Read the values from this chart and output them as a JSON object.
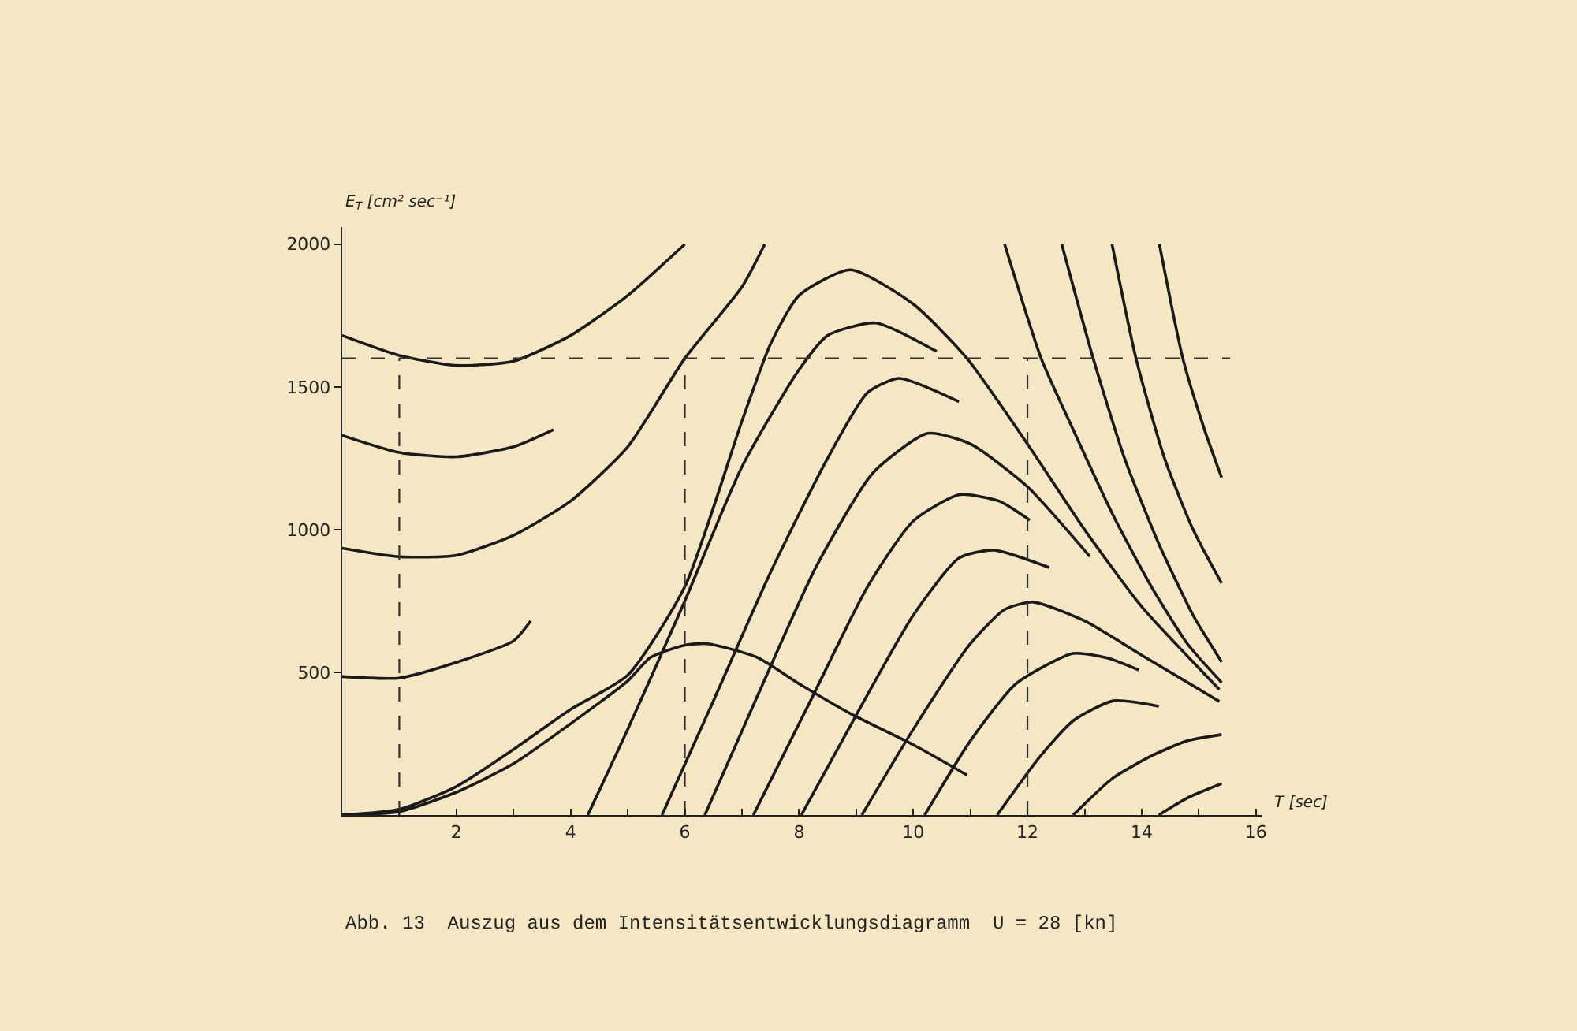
{
  "chart_data": {
    "type": "line",
    "xlabel": "T [sec]",
    "ylabel": "E$_{T}$ [cm² sec⁻¹]",
    "annotations": [
      "Abb. 13  Auszug aus dem Intensitätsentwicklungsdiagramm  U = 28 [kn]"
    ],
    "xlim": [
      0,
      16.1
    ],
    "ylim": [
      0,
      2060
    ],
    "xticks": [
      {
        "value": 1,
        "label": null
      },
      2,
      {
        "value": 3,
        "label": null
      },
      4,
      {
        "value": 5,
        "label": null
      },
      6,
      {
        "value": 7,
        "label": null
      },
      8,
      {
        "value": 9,
        "label": null
      },
      10,
      {
        "value": 11,
        "label": null
      },
      12,
      {
        "value": 13,
        "label": null
      },
      14,
      {
        "value": 15,
        "label": null
      },
      16
    ],
    "yticks": [
      500,
      1000,
      1500,
      2000
    ],
    "grid": false,
    "line_style": "solid",
    "series": [
      {
        "color": "#1a1a1a",
        "x": [
          0,
          1,
          2,
          3,
          4,
          5,
          6
        ],
        "values": [
          1680,
          1610,
          1575,
          1590,
          1680,
          1820,
          2000
        ]
      },
      {
        "color": "#1a1a1a",
        "x": [
          0,
          1,
          2,
          3,
          3.7
        ],
        "values": [
          1330,
          1270,
          1255,
          1290,
          1350
        ]
      },
      {
        "color": "#1a1a1a",
        "x": [
          0,
          1,
          2,
          3,
          4,
          5,
          6,
          7,
          7.4
        ],
        "values": [
          935,
          905,
          910,
          980,
          1100,
          1290,
          1600,
          1850,
          2000
        ]
      },
      {
        "color": "#1a1a1a",
        "x": [
          0,
          1,
          2,
          3,
          3.3
        ],
        "values": [
          485,
          480,
          535,
          610,
          680
        ]
      },
      {
        "color": "#1a1a1a",
        "x": [
          0,
          1,
          2,
          3,
          4,
          5,
          6,
          7,
          7.5,
          8,
          8.9,
          10,
          10.94,
          12,
          13,
          14,
          15.36
        ],
        "values": [
          0,
          20,
          100,
          230,
          370,
          490,
          800,
          1380,
          1650,
          1820,
          1910,
          1790,
          1600,
          1300,
          1000,
          730,
          440
        ]
      },
      {
        "color": "#1a1a1a",
        "x": [
          0,
          1,
          2,
          3,
          4,
          5,
          5.4,
          6,
          6.4,
          7.27,
          8,
          8.92,
          10.03,
          10.94
        ],
        "values": [
          0,
          12,
          80,
          180,
          320,
          470,
          552,
          595,
          600,
          552,
          460,
          353,
          243,
          140
        ]
      },
      {
        "color": "#1a1a1a",
        "x": [
          4.3,
          5,
          6,
          7,
          8,
          8.5,
          9.34,
          10.41
        ],
        "values": [
          0,
          300,
          750,
          1220,
          1560,
          1680,
          1724,
          1624
        ]
      },
      {
        "color": "#1a1a1a",
        "x": [
          5.6,
          6.5,
          7.5,
          8.5,
          9.2,
          9.75,
          10.8
        ],
        "values": [
          0,
          400,
          850,
          1250,
          1480,
          1530,
          1448
        ]
      },
      {
        "color": "#1a1a1a",
        "x": [
          6.35,
          7.3,
          8.3,
          9.3,
          10.25,
          11,
          12,
          13.09
        ],
        "values": [
          0,
          430,
          870,
          1200,
          1337,
          1300,
          1150,
          906
        ]
      },
      {
        "color": "#1a1a1a",
        "x": [
          7.2,
          8.2,
          9.2,
          10,
          10.8,
          11.5,
          12.04
        ],
        "values": [
          0,
          400,
          800,
          1030,
          1122,
          1100,
          1033
        ]
      },
      {
        "color": "#1a1a1a",
        "x": [
          8.04,
          9,
          10,
          10.8,
          11.41,
          12.38
        ],
        "values": [
          0,
          350,
          700,
          900,
          928,
          867
        ]
      },
      {
        "color": "#1a1a1a",
        "x": [
          9.1,
          10,
          11,
          11.6,
          12.1,
          13,
          14,
          15.36
        ],
        "values": [
          0,
          300,
          600,
          720,
          746,
          680,
          560,
          398
        ]
      },
      {
        "color": "#1a1a1a",
        "x": [
          10.2,
          11,
          11.8,
          12.8,
          13.4,
          13.95
        ],
        "values": [
          0,
          260,
          460,
          566,
          550,
          508
        ]
      },
      {
        "color": "#1a1a1a",
        "x": [
          11.47,
          12.2,
          12.8,
          13.5,
          14.3
        ],
        "values": [
          0,
          200,
          330,
          400,
          381
        ]
      },
      {
        "color": "#1a1a1a",
        "x": [
          12.8,
          13.5,
          14.2,
          14.8,
          15.4
        ],
        "values": [
          0,
          130,
          210,
          260,
          282
        ]
      },
      {
        "color": "#1a1a1a",
        "x": [
          14.3,
          14.8,
          15.4
        ],
        "values": [
          0,
          60,
          110
        ]
      },
      {
        "color": "#1a1a1a",
        "x": [
          11.6,
          12.24,
          12.8,
          13.5,
          14.17,
          14.8,
          15.4
        ],
        "values": [
          2000,
          1600,
          1350,
          1050,
          800,
          600,
          464
        ]
      },
      {
        "color": "#1a1a1a",
        "x": [
          12.6,
          13.15,
          13.7,
          14.3,
          14.9,
          15.4
        ],
        "values": [
          2000,
          1600,
          1250,
          950,
          700,
          536
        ]
      },
      {
        "color": "#1a1a1a",
        "x": [
          13.48,
          13.9,
          14.4,
          14.9,
          15.4
        ],
        "values": [
          2000,
          1600,
          1250,
          1000,
          812
        ]
      },
      {
        "color": "#1a1a1a",
        "x": [
          14.31,
          14.72,
          15.1,
          15.4
        ],
        "values": [
          2000,
          1600,
          1350,
          1182
        ]
      },
      {
        "color": "#333333",
        "line_style": "dashed",
        "x": [
          0,
          15.55
        ],
        "values": [
          1600,
          1600
        ]
      },
      {
        "color": "#333333",
        "line_style": "dashed",
        "x": [
          1,
          1
        ],
        "values": [
          0,
          1600
        ]
      },
      {
        "color": "#333333",
        "line_style": "dashed",
        "x": [
          6,
          6
        ],
        "values": [
          0,
          1600
        ]
      },
      {
        "color": "#333333",
        "line_style": "dashed",
        "x": [
          12,
          12
        ],
        "values": [
          0,
          1600
        ]
      }
    ]
  }
}
